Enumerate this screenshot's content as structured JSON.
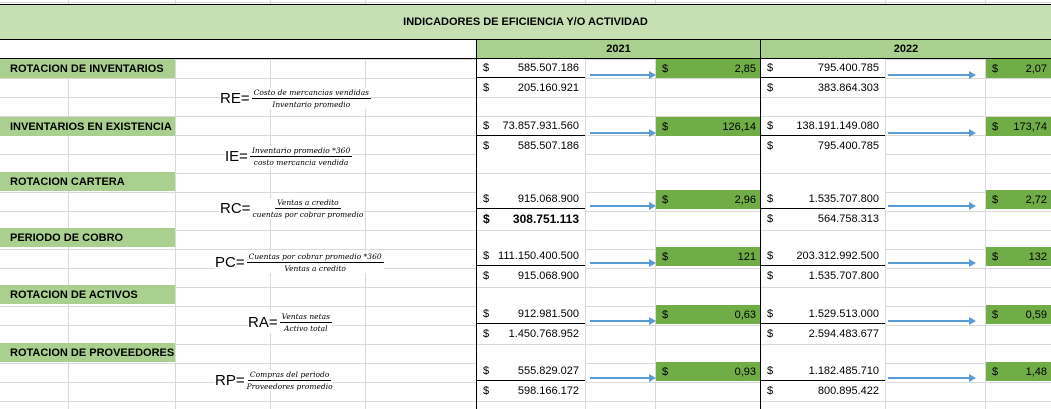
{
  "title": "INDICADORES DE EFICIENCIA Y/O ACTIVIDAD",
  "years": [
    "2021",
    "2022"
  ],
  "currency": "$",
  "colors": {
    "title_bg": "#c6e0b4",
    "header_bg": "#a9d08e",
    "result_bg": "#70ad47",
    "arrow": "#5b9bd5"
  },
  "sections": [
    {
      "label": "ROTACION DE INVENTARIOS",
      "formula": {
        "symbol": "RE=",
        "numerator": "Costo de mercancias vendidas",
        "denominator": "Inventario promedio"
      },
      "y2021": {
        "numerator": "585.507.186",
        "denominator": "205.160.921",
        "result": "2,85"
      },
      "y2022": {
        "numerator": "795.400.785",
        "denominator": "383.864.303",
        "result": "2,07"
      }
    },
    {
      "label": "INVENTARIOS EN EXISTENCIA",
      "formula": {
        "symbol": "IE=",
        "numerator": "Inventario promedio *360",
        "denominator": "costo mercancia vendida"
      },
      "y2021": {
        "numerator": "73.857.931.560",
        "denominator": "585.507.186",
        "result": "126,14"
      },
      "y2022": {
        "numerator": "138.191.149.080",
        "denominator": "795.400.785",
        "result": "173,74"
      }
    },
    {
      "label": "ROTACION CARTERA",
      "formula": {
        "symbol": "RC=",
        "numerator": "Ventas a credito",
        "denominator": "cuentas por cobrar promedio"
      },
      "y2021": {
        "numerator": "915.068.900",
        "denominator": "308.751.113",
        "result": "2,96"
      },
      "y2022": {
        "numerator": "1.535.707.800",
        "denominator": "564.758.313",
        "result": "2,72"
      }
    },
    {
      "label": "PERIODO DE COBRO",
      "formula": {
        "symbol": "PC=",
        "numerator": "Cuentas por cobrar promedio *360",
        "denominator": "Ventas a credito"
      },
      "y2021": {
        "numerator": "111.150.400.500",
        "denominator": "915.068.900",
        "result": "121"
      },
      "y2022": {
        "numerator": "203.312.992.500",
        "denominator": "1.535.707.800",
        "result": "132"
      }
    },
    {
      "label": "ROTACION DE ACTIVOS",
      "formula": {
        "symbol": "RA=",
        "numerator": "Ventas netas",
        "denominator": "Activo total"
      },
      "y2021": {
        "numerator": "912.981.500",
        "denominator": "1.450.768.952",
        "result": "0,63"
      },
      "y2022": {
        "numerator": "1.529.513.000",
        "denominator": "2.594.483.677",
        "result": "0,59"
      }
    },
    {
      "label": "ROTACION DE PROVEEDORES",
      "formula": {
        "symbol": "RP=",
        "numerator": "Compras del periodo",
        "denominator": "Proveedores promedio"
      },
      "y2021": {
        "numerator": "555.829.027",
        "denominator": "598.166.172",
        "result": "0,93"
      },
      "y2022": {
        "numerator": "1.182.485.710",
        "denominator": "800.895.422",
        "result": "1,48"
      }
    }
  ]
}
